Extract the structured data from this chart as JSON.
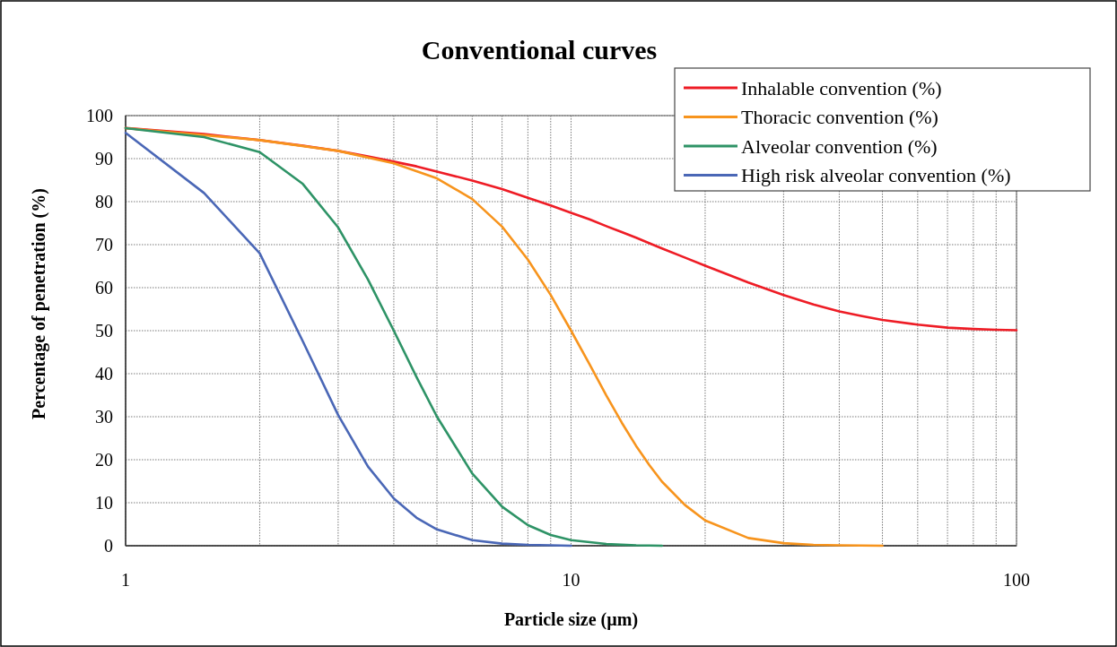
{
  "chart_data": {
    "type": "line",
    "title": "Conventional curves",
    "xlabel": "Particle size (µm)",
    "ylabel": "Percentage of penetration (%)",
    "log": "x",
    "xlim": [
      1,
      100
    ],
    "ylim": [
      0,
      100
    ],
    "xticks": [
      1,
      {
        "value": 2,
        "label": null
      },
      {
        "value": 3,
        "label": null
      },
      {
        "value": 4,
        "label": null
      },
      {
        "value": 5,
        "label": null
      },
      {
        "value": 6,
        "label": null
      },
      {
        "value": 7,
        "label": null
      },
      {
        "value": 8,
        "label": null
      },
      {
        "value": 9,
        "label": null
      },
      10,
      {
        "value": 20,
        "label": null
      },
      {
        "value": 30,
        "label": null
      },
      {
        "value": 40,
        "label": null
      },
      {
        "value": 50,
        "label": null
      },
      {
        "value": 60,
        "label": null
      },
      {
        "value": 70,
        "label": null
      },
      {
        "value": 80,
        "label": null
      },
      {
        "value": 90,
        "label": null
      },
      100
    ],
    "yticks": [
      0,
      10,
      20,
      30,
      40,
      50,
      60,
      70,
      80,
      90,
      100
    ],
    "grid": true,
    "legend": "top right",
    "marker": "none",
    "line_style": "solid",
    "series": [
      {
        "name": "Inhalable convention (%)",
        "color": "#ee1c25",
        "x": [
          1,
          1.5,
          2,
          2.5,
          3,
          3.5,
          4,
          4.5,
          5,
          6,
          7,
          8,
          9,
          10,
          11,
          12,
          13,
          14,
          15,
          16,
          18,
          20,
          25,
          30,
          35,
          40,
          45,
          50,
          60,
          70,
          80,
          90,
          100
        ],
        "values": [
          97.1,
          95.7,
          94.3,
          93.0,
          91.8,
          90.5,
          89.3,
          88.2,
          87.0,
          84.9,
          82.9,
          80.9,
          79.1,
          77.4,
          75.9,
          74.3,
          72.9,
          71.6,
          70.3,
          69.1,
          67.0,
          65.1,
          61.2,
          58.3,
          56.1,
          54.5,
          53.4,
          52.5,
          51.4,
          50.7,
          50.4,
          50.2,
          50.1
        ]
      },
      {
        "name": "Thoracic convention (%)",
        "color": "#f7941d",
        "x": [
          1,
          2,
          3,
          4,
          5,
          6,
          7,
          8,
          9,
          10,
          11,
          12,
          13,
          14,
          15,
          16,
          18,
          20,
          25,
          30,
          35,
          40,
          50
        ],
        "values": [
          97.1,
          94.3,
          91.8,
          88.9,
          85.4,
          80.6,
          74.2,
          66.5,
          58.3,
          50.0,
          42.2,
          34.9,
          28.6,
          23.2,
          18.7,
          14.9,
          9.5,
          5.9,
          1.8,
          0.6,
          0.2,
          0.1,
          0.0
        ]
      },
      {
        "name": "Alveolar convention (%)",
        "color": "#2e9366",
        "x": [
          1,
          1.5,
          2,
          2.5,
          3,
          3.5,
          4,
          4.5,
          5,
          6,
          7,
          8,
          9,
          10,
          12,
          14,
          16
        ],
        "values": [
          97.1,
          95.0,
          91.5,
          84.1,
          74.0,
          61.9,
          50.0,
          39.2,
          30.0,
          16.8,
          9.1,
          4.8,
          2.5,
          1.3,
          0.4,
          0.1,
          0.0
        ]
      },
      {
        "name": "High risk alveolar convention (%)",
        "color": "#4a67b6",
        "x": [
          1,
          1.5,
          2,
          2.5,
          3,
          3.5,
          4,
          4.5,
          5,
          6,
          7,
          8,
          9,
          10
        ],
        "values": [
          96.0,
          82.0,
          68.0,
          47.5,
          30.4,
          18.4,
          11.0,
          6.5,
          3.8,
          1.3,
          0.5,
          0.2,
          0.1,
          0.0
        ]
      }
    ]
  }
}
